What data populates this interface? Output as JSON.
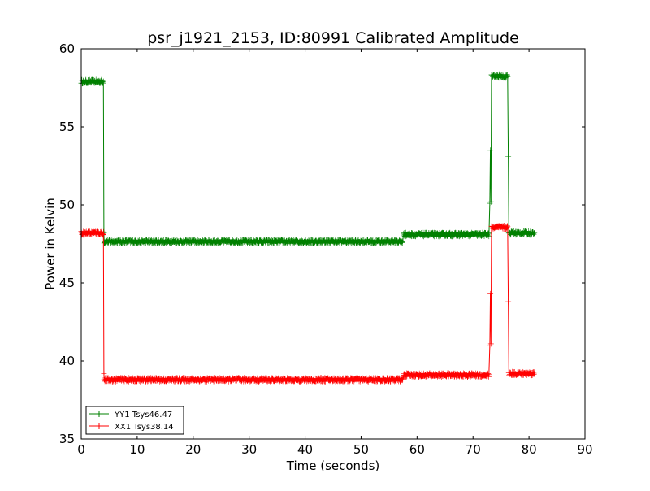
{
  "chart_data": {
    "type": "line",
    "title": "psr_j1921_2153, ID:80991 Calibrated Amplitude",
    "xlabel": "Time (seconds)",
    "ylabel": "Power in Kelvin",
    "xlim": [
      0,
      90
    ],
    "ylim": [
      35,
      60
    ],
    "xticks": [
      "0",
      "10",
      "20",
      "30",
      "40",
      "50",
      "60",
      "70",
      "80",
      "90"
    ],
    "yticks": [
      "35",
      "40",
      "45",
      "50",
      "55",
      "60"
    ],
    "grid": false,
    "legend_position": "bottom-left",
    "series": [
      {
        "name": "YY1 Tsys46.47",
        "color": "#008000",
        "noise": 0.12,
        "plateaus": [
          {
            "x_start": 0,
            "x_end": 4.0,
            "level": 57.9
          },
          {
            "x_start": 4.1,
            "x_end": 57.5,
            "level": 47.65
          },
          {
            "x_start": 57.6,
            "x_end": 72.9,
            "level": 48.1
          },
          {
            "x_start": 73.3,
            "x_end": 76.2,
            "level": 58.25
          },
          {
            "x_start": 76.4,
            "x_end": 81.0,
            "level": 48.2
          }
        ],
        "transitions": [
          [
            4.05,
            48.2
          ],
          [
            73.0,
            50.1
          ],
          [
            73.1,
            53.5
          ],
          [
            73.2,
            50.2
          ],
          [
            76.3,
            53.1
          ]
        ]
      },
      {
        "name": "XX1 Tsys38.14",
        "color": "#ff0000",
        "noise": 0.12,
        "plateaus": [
          {
            "x_start": 0,
            "x_end": 4.0,
            "level": 48.2
          },
          {
            "x_start": 4.1,
            "x_end": 57.5,
            "level": 38.8
          },
          {
            "x_start": 57.6,
            "x_end": 72.9,
            "level": 39.1
          },
          {
            "x_start": 73.3,
            "x_end": 76.2,
            "level": 48.55
          },
          {
            "x_start": 76.4,
            "x_end": 81.0,
            "level": 39.2
          }
        ],
        "transitions": [
          [
            4.05,
            39.2
          ],
          [
            73.0,
            41.0
          ],
          [
            73.1,
            44.3
          ],
          [
            73.2,
            41.1
          ],
          [
            76.3,
            43.8
          ]
        ]
      }
    ]
  }
}
